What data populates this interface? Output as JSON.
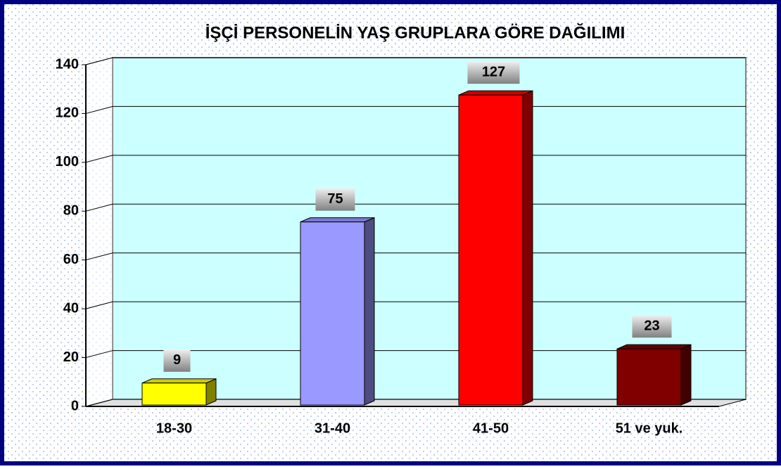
{
  "chart_data": {
    "type": "bar3d",
    "title": "İŞÇİ PERSONELİN YAŞ GRUPLARA GÖRE DAĞILIMI",
    "categories": [
      "18-30",
      "31-40",
      "41-50",
      "51 ve yuk."
    ],
    "values": [
      9,
      75,
      127,
      23
    ],
    "colors": [
      "#ffff00",
      "#9999ff",
      "#ff0000",
      "#800000"
    ],
    "ylim": [
      0,
      140
    ],
    "yticks": [
      0,
      20,
      40,
      60,
      80,
      100,
      120,
      140
    ],
    "grid": true
  }
}
